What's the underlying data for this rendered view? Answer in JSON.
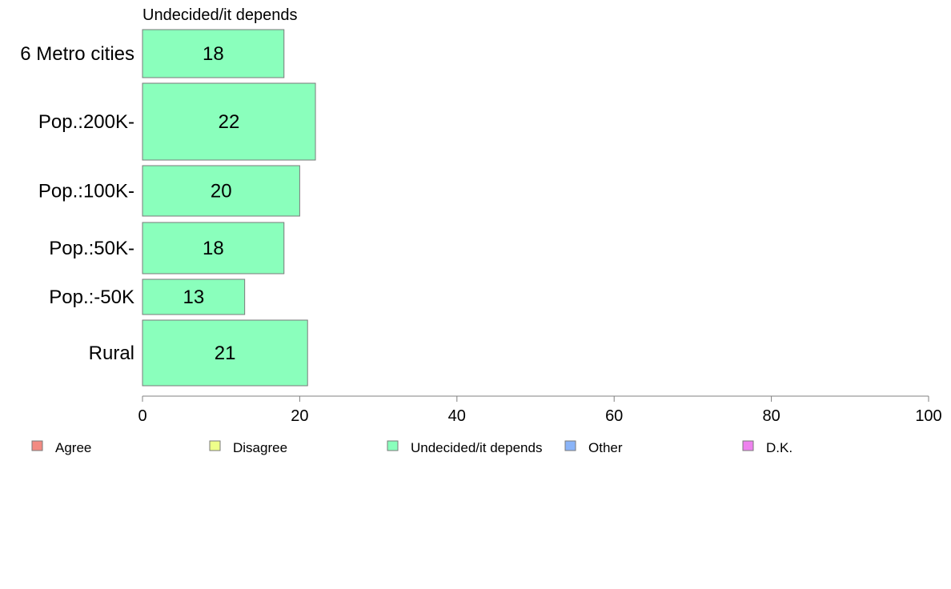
{
  "chart_data": {
    "type": "bar",
    "orientation": "horizontal",
    "title": "Undecided/it depends",
    "categories": [
      "6 Metro cities",
      "Pop.:200K-",
      "Pop.:100K-",
      "Pop.:50K-",
      "Pop.:-50K",
      "Rural"
    ],
    "series": [
      {
        "name": "Undecided/it depends",
        "values": [
          18,
          22,
          20,
          18,
          13,
          21
        ],
        "color": "#8affbc"
      }
    ],
    "bar_labels": [
      "18",
      "22",
      "20",
      "18",
      "13",
      "21"
    ],
    "xlim": [
      0,
      100
    ],
    "x_ticks": [
      0,
      20,
      40,
      60,
      80,
      100
    ],
    "x_tick_labels": [
      "0",
      "20",
      "40",
      "60",
      "80",
      "100"
    ],
    "grid": false,
    "legend_position": "bottom",
    "legend": [
      {
        "label": "Agree",
        "color": "#f28b82"
      },
      {
        "label": "Disagree",
        "color": "#eeff8a"
      },
      {
        "label": "Undecided/it depends",
        "color": "#8affbc"
      },
      {
        "label": "Other",
        "color": "#8ab4f8"
      },
      {
        "label": "D.K.",
        "color": "#ee82ee"
      }
    ]
  }
}
